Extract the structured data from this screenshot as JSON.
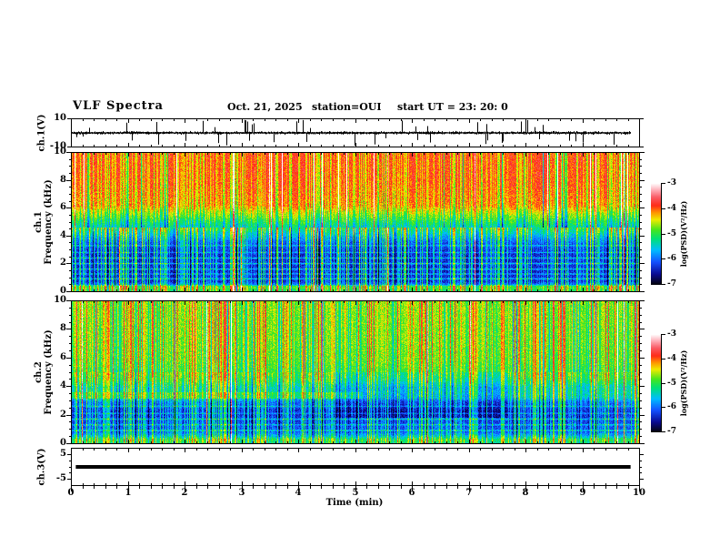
{
  "header": {
    "title": "VLF Spectra",
    "date": "Oct. 21, 2025",
    "station": "station=OUI",
    "start_ut": "start UT =  23: 20: 0"
  },
  "axes": {
    "time": {
      "label": "Time (min)",
      "min": 0,
      "max": 10,
      "major_ticks": [
        0,
        1,
        2,
        3,
        4,
        5,
        6,
        7,
        8,
        9,
        10
      ],
      "minor_step": 0.2
    },
    "ch1_wave": {
      "label": "ch.1(V)",
      "ticks": [
        10,
        -10
      ],
      "range": [
        -10,
        10
      ]
    },
    "spec1": {
      "label_line1": "ch.1",
      "label_line2": "Frequency (kHz)",
      "ticks": [
        0,
        2,
        4,
        6,
        8,
        10
      ],
      "range": [
        0,
        10
      ],
      "minor_step": 0.5
    },
    "spec2": {
      "label_line1": "ch.2",
      "label_line2": "Frequency (kHz)",
      "ticks": [
        0,
        2,
        4,
        6,
        8,
        10
      ],
      "range": [
        0,
        10
      ],
      "minor_step": 0.5
    },
    "ch3_wave": {
      "label": "ch.3(V)",
      "ticks": [
        5,
        -5
      ],
      "range": [
        -7.5,
        7.5
      ]
    }
  },
  "colorbar": {
    "label": "log(PSD)(V²/Hz)",
    "ticks": [
      "-3",
      "-4",
      "-5",
      "-6",
      "-7"
    ],
    "min": -7,
    "max": -3
  },
  "colormap": {
    "stops": [
      [
        0.0,
        [
          4,
          4,
          12
        ]
      ],
      [
        0.1,
        [
          10,
          10,
          145
        ]
      ],
      [
        0.22,
        [
          20,
          80,
          255
        ]
      ],
      [
        0.34,
        [
          0,
          190,
          255
        ]
      ],
      [
        0.45,
        [
          0,
          225,
          120
        ]
      ],
      [
        0.54,
        [
          70,
          230,
          30
        ]
      ],
      [
        0.64,
        [
          240,
          235,
          0
        ]
      ],
      [
        0.71,
        [
          255,
          150,
          0
        ]
      ],
      [
        0.78,
        [
          255,
          45,
          25
        ]
      ],
      [
        0.86,
        [
          250,
          90,
          100
        ]
      ],
      [
        0.93,
        [
          255,
          170,
          180
        ]
      ],
      [
        1.0,
        [
          255,
          255,
          255
        ]
      ]
    ]
  },
  "chart_data": [
    {
      "type": "line",
      "name": "ch1-voltage-waveform",
      "x_range": [
        0,
        10
      ],
      "y_range": [
        -10,
        10
      ],
      "description": "Broadband noisy voltage trace centered on 0 V with impulsive spikes reaching toward ±10 V; trace ends slightly before 10 min.",
      "render": {
        "seed": 7,
        "noise_v": 0.8,
        "spike_prob": 0.07,
        "spike_v_max": 9.5,
        "trace_end_min": 9.85
      }
    },
    {
      "type": "heatmap",
      "name": "ch1-spectrogram",
      "x_range": [
        0,
        10
      ],
      "y_range": [
        0,
        10
      ],
      "value_range": [
        -7,
        -3
      ],
      "description": "VLF spectrogram ch.1: intense red power above ~6 kHz, yellow/green vertical sferic streaks, blue background below ~4 kHz crossed by cyan horizontal hum lines and green vertical streaks.",
      "render": {
        "seed": 11,
        "noise": 0.5,
        "profile": [
          [
            0,
            -5.2
          ],
          [
            0.2,
            -5.0
          ],
          [
            0.35,
            -5.0
          ],
          [
            0.5,
            -6.0
          ],
          [
            0.7,
            -6.35
          ],
          [
            2.8,
            -6.35
          ],
          [
            3.5,
            -6.1
          ],
          [
            4.2,
            -5.55
          ],
          [
            4.8,
            -5.05
          ],
          [
            5.5,
            -4.55
          ],
          [
            6.2,
            -4.05
          ],
          [
            8,
            -3.9
          ],
          [
            10,
            -3.85
          ]
        ],
        "bands": [
          {
            "f": 0.9,
            "dv": 0.7
          },
          {
            "f": 1.25,
            "dv": 0.6
          },
          {
            "f": 1.6,
            "dv": 0.65
          },
          {
            "f": 2.0,
            "dv": 0.7
          },
          {
            "f": 2.4,
            "dv": 0.6
          },
          {
            "f": 2.8,
            "dv": 0.5
          },
          {
            "f": 3.3,
            "dv": 0.45
          }
        ],
        "streaks": {
          "prob": 0.55,
          "dv_low": 1.35,
          "dv_high": -0.75,
          "dv_high_off": 0,
          "split": 4.6,
          "red_line_prob": 0.05,
          "dim_prob": 0.06
        }
      }
    },
    {
      "type": "heatmap",
      "name": "ch2-spectrogram",
      "x_range": [
        0,
        10
      ],
      "y_range": [
        0,
        10
      ],
      "value_range": [
        -7,
        -3
      ],
      "description": "VLF spectrogram ch.2: green background above ~5 kHz with yellow/red vertical streaks, bright cyan band near 3.5 kHz strongest before ~5 min, blue background with cyan hum lines below ~2.5 kHz, darker patch at 2-5 kHz after ~4.6 min.",
      "render": {
        "seed": 23,
        "noise": 0.5,
        "profile": [
          [
            0,
            -5.3
          ],
          [
            0.25,
            -5.1
          ],
          [
            0.45,
            -5.6
          ],
          [
            0.8,
            -6.1
          ],
          [
            2.2,
            -6.35
          ],
          [
            2.9,
            -6.0
          ],
          [
            3.2,
            -5.55
          ],
          [
            3.55,
            -5.45
          ],
          [
            3.9,
            -5.5
          ],
          [
            4.4,
            -5.15
          ],
          [
            5,
            -4.95
          ],
          [
            6,
            -4.8
          ],
          [
            10,
            -4.7
          ]
        ],
        "bands": [
          {
            "f": 0.9,
            "dv": 0.6
          },
          {
            "f": 1.3,
            "dv": 0.55
          },
          {
            "f": 1.7,
            "dv": 0.6
          },
          {
            "f": 2.1,
            "dv": 0.5
          },
          {
            "f": 2.6,
            "dv": 0.45
          }
        ],
        "cyan_band": {
          "t_max": 5.1,
          "f": [
            3.15,
            3.6
          ],
          "dv": 0.35
        },
        "patch": {
          "t": [
            4.6,
            7.7
          ],
          "f": [
            1.8,
            5.0
          ],
          "dv": -0.3
        },
        "streaks": {
          "prob": 0.6,
          "dv_low": 1.15,
          "dv_high": 1.5,
          "dv_high_off": -0.5,
          "split": 5.0,
          "red_line_prob": 0.03,
          "dim_prob": 0.1
        }
      }
    },
    {
      "type": "line",
      "name": "ch3-voltage-waveform",
      "x_range": [
        0,
        10
      ],
      "y_range": [
        -7.5,
        7.5
      ],
      "description": "Flat (zero-signal) thick black trace at 0 V for entire record.",
      "render": {
        "line_v": 0,
        "thickness_px": 4,
        "t_start": 0.07,
        "t_end": 9.85
      }
    }
  ]
}
